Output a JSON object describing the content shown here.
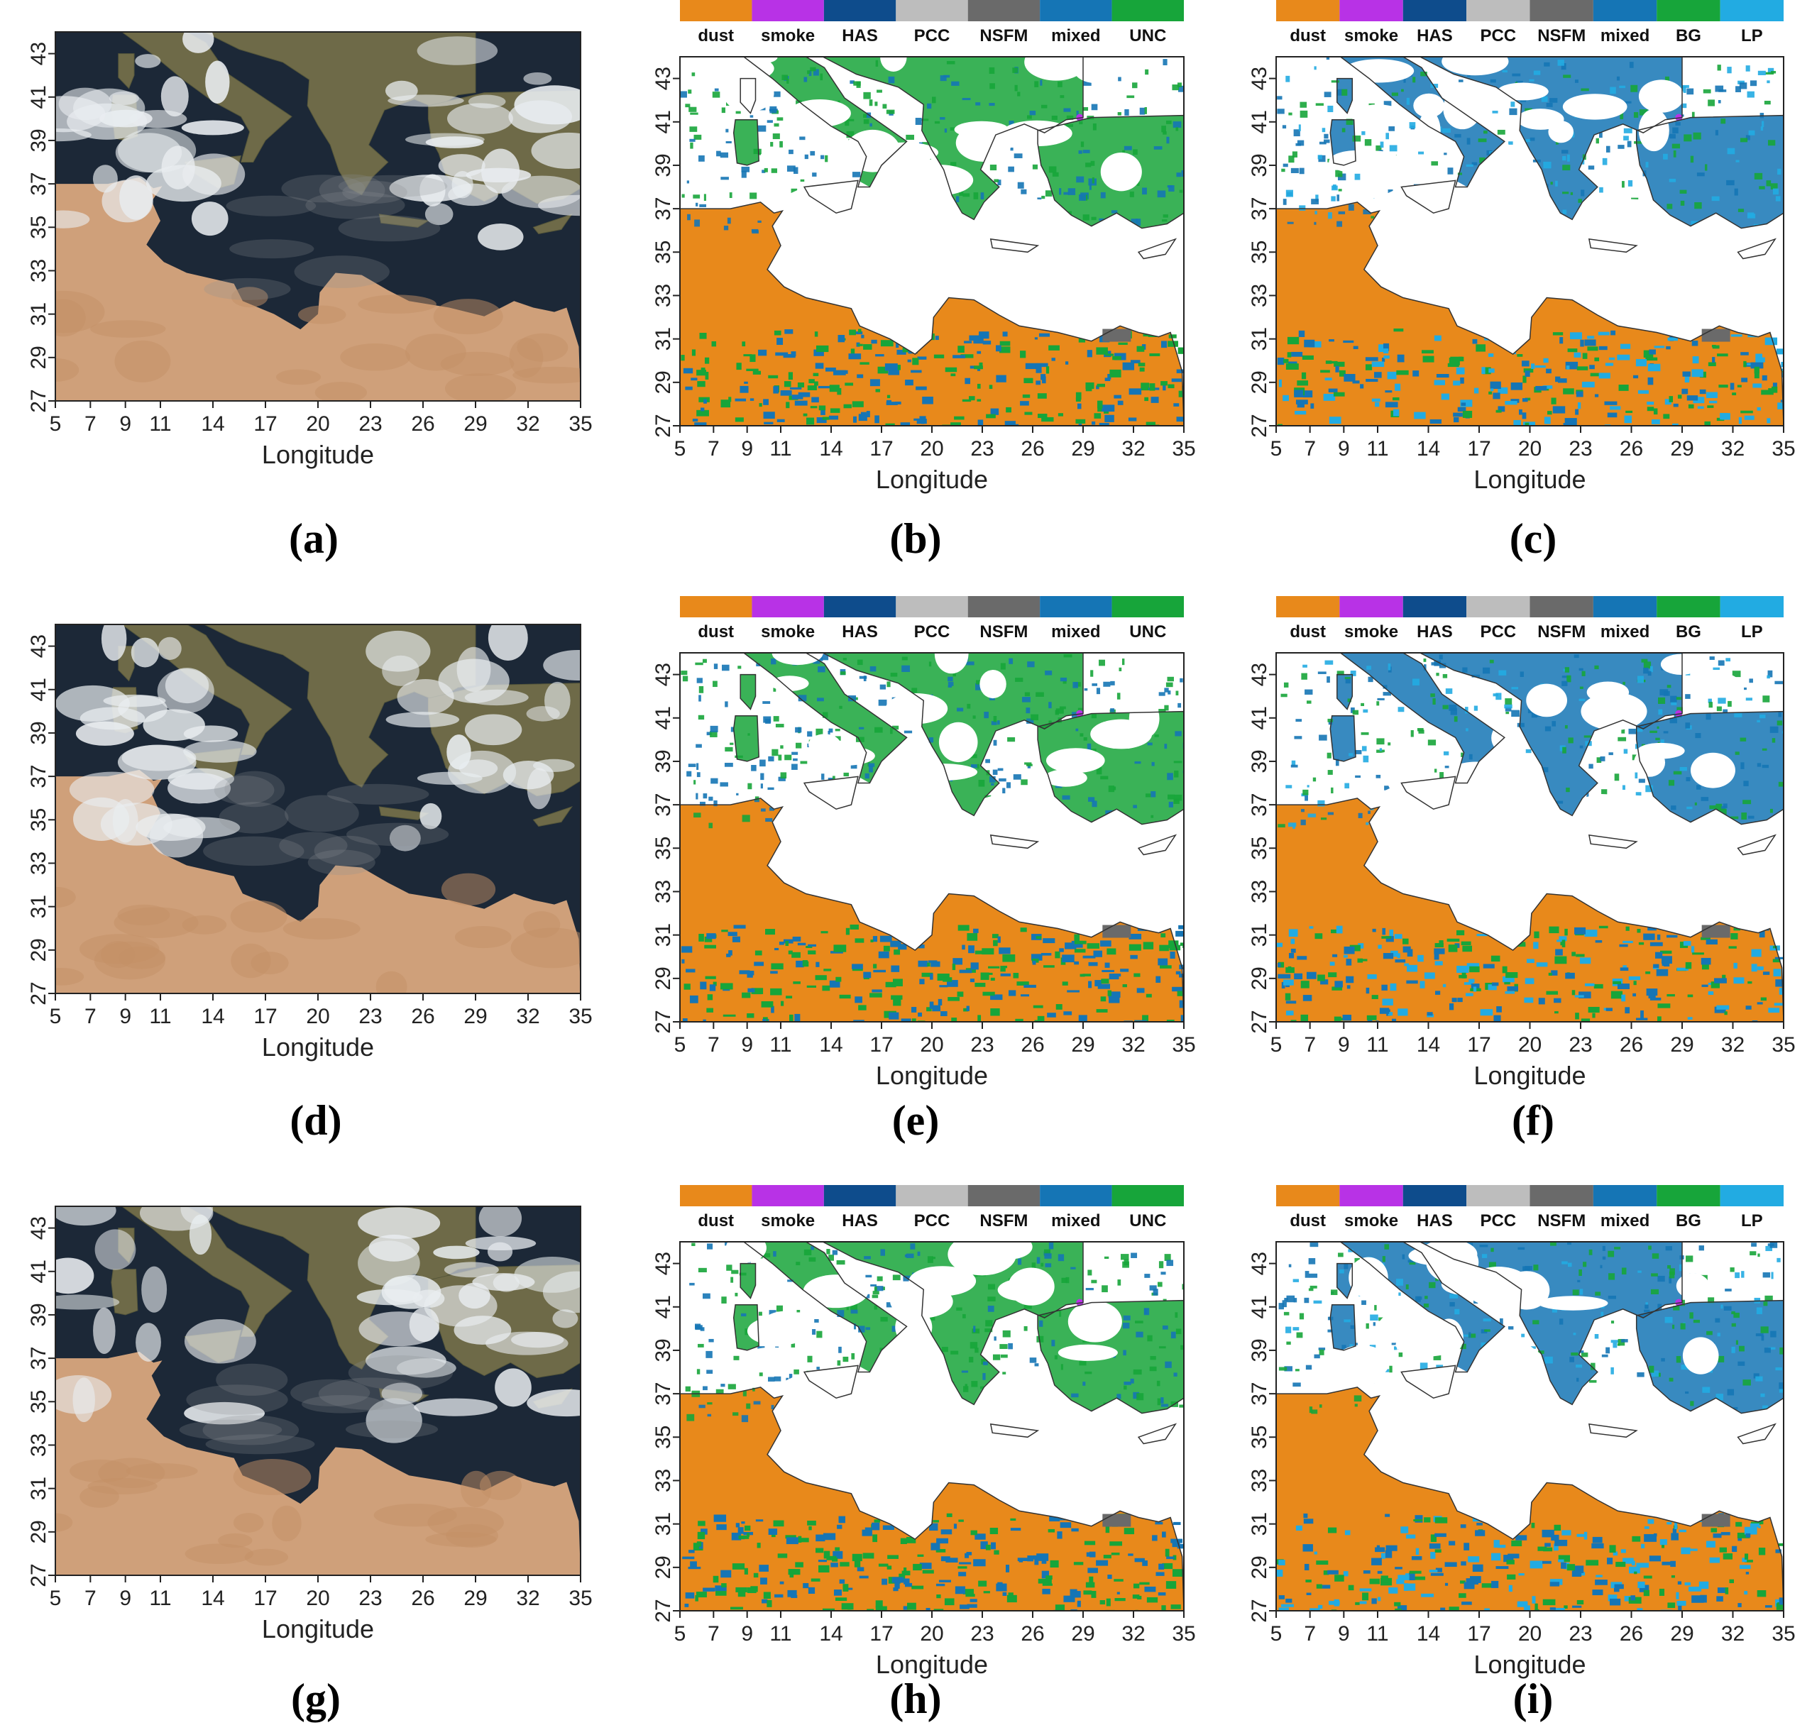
{
  "xlabel": "Longitude",
  "x_ticks": [
    "5",
    "7",
    "9",
    "11",
    "14",
    "17",
    "20",
    "23",
    "26",
    "29",
    "32",
    "35"
  ],
  "y_ticks": [
    "27",
    "29",
    "31",
    "33",
    "35",
    "37",
    "39",
    "41",
    "43"
  ],
  "lon_range": [
    5,
    35
  ],
  "lat_range": [
    27,
    44
  ],
  "legend_b": [
    {
      "label": "dust",
      "color": "#E8891B"
    },
    {
      "label": "smoke",
      "color": "#B832E6"
    },
    {
      "label": "HAS",
      "color": "#0E4C8C"
    },
    {
      "label": "PCC",
      "color": "#BDBDBD"
    },
    {
      "label": "NSFM",
      "color": "#6A6A6A"
    },
    {
      "label": "mixed",
      "color": "#1575B5"
    },
    {
      "label": "UNC",
      "color": "#17A53A"
    }
  ],
  "legend_c": [
    {
      "label": "dust",
      "color": "#E8891B"
    },
    {
      "label": "smoke",
      "color": "#B832E6"
    },
    {
      "label": "HAS",
      "color": "#0E4C8C"
    },
    {
      "label": "PCC",
      "color": "#BDBDBD"
    },
    {
      "label": "NSFM",
      "color": "#6A6A6A"
    },
    {
      "label": "mixed",
      "color": "#1575B5"
    },
    {
      "label": "BG",
      "color": "#17A53A"
    },
    {
      "label": "LP",
      "color": "#22ABE2"
    }
  ],
  "colors": {
    "sea_sat": "#1C2837",
    "desert": "#CFA07A",
    "land_sat": "#6E6A48",
    "cloud": "#E9EDF0",
    "dust": "#E8891B",
    "mixed": "#1575B5",
    "green": "#17A53A",
    "lp": "#22ABE2",
    "nsfm": "#6A6A6A",
    "smoke": "#B832E6"
  },
  "panels": [
    {
      "id": "a",
      "caption": "(a)",
      "kind": "sat"
    },
    {
      "id": "b",
      "caption": "(b)",
      "kind": "class",
      "legend": "b"
    },
    {
      "id": "c",
      "caption": "(c)",
      "kind": "class",
      "legend": "c"
    },
    {
      "id": "d",
      "caption": "(d)",
      "kind": "sat"
    },
    {
      "id": "e",
      "caption": "(e)",
      "kind": "class",
      "legend": "b"
    },
    {
      "id": "f",
      "caption": "(f)",
      "kind": "class",
      "legend": "c"
    },
    {
      "id": "g",
      "caption": "(g)",
      "kind": "sat"
    },
    {
      "id": "h",
      "caption": "(h)",
      "kind": "class",
      "legend": "b"
    },
    {
      "id": "i",
      "caption": "(i)",
      "kind": "class",
      "legend": "c"
    }
  ]
}
